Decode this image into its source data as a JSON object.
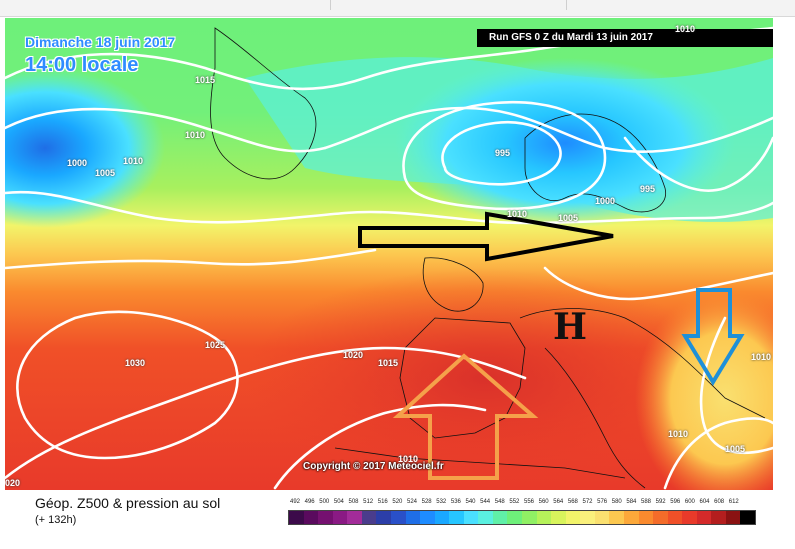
{
  "map": {
    "date": "Dimanche 18 juin 2017",
    "time": "14:00 locale",
    "run_banner": "Run GFS 0 Z du Mardi 13 juin 2017",
    "copyright": "Copyright © 2017 Meteociel.fr",
    "high_symbol": "H",
    "isobar_labels": [
      "1015",
      "1010",
      "1000",
      "1005",
      "1010",
      "995",
      "995",
      "1010",
      "1005",
      "1000",
      "1030",
      "1025",
      "1020",
      "1015",
      "1010",
      "1010",
      "1005",
      "1010",
      "020",
      "1010"
    ]
  },
  "legend": {
    "title": "Géop. Z500 & pression au sol",
    "subtitle": "(+ 132h)",
    "scale_values": [
      "492",
      "496",
      "500",
      "504",
      "508",
      "512",
      "516",
      "520",
      "524",
      "528",
      "532",
      "536",
      "540",
      "544",
      "548",
      "552",
      "556",
      "560",
      "564",
      "568",
      "572",
      "576",
      "580",
      "584",
      "588",
      "592",
      "596",
      "600",
      "604",
      "608",
      "612"
    ],
    "scale_colors": [
      "#3c0a4a",
      "#5a0a5e",
      "#751070",
      "#8a1a84",
      "#a22c99",
      "#4a3c8c",
      "#2c3ea8",
      "#2a50c8",
      "#1f6ee6",
      "#1e8cff",
      "#1aa8ff",
      "#26c6ff",
      "#4ae0ff",
      "#5af0e0",
      "#60f0a8",
      "#6ef07a",
      "#90f064",
      "#b6f25a",
      "#d8f45c",
      "#f2f46a",
      "#faf07c",
      "#fae070",
      "#fcc850",
      "#fca83a",
      "#fa8a2e",
      "#f46c2a",
      "#f05028",
      "#e83a2a",
      "#d42a2a",
      "#b41e1e",
      "#8a1212",
      "#000000"
    ]
  },
  "annotations": {
    "black_arrow": "eastward flow arrow",
    "orange_arrow": "northward warm air arrow",
    "blue_arrow": "southward cold air arrow"
  }
}
